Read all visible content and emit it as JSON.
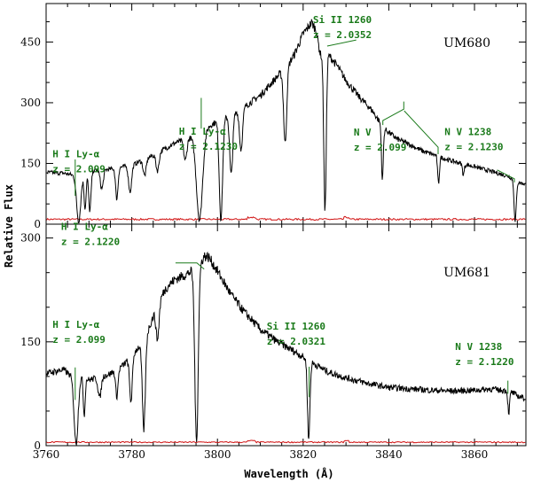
{
  "chart_data": [
    {
      "type": "line",
      "panel_label": "UM680",
      "ylabel": "Relative Flux",
      "xlabel": "Wavelength (Å)",
      "xlim": [
        3760,
        3872
      ],
      "ylim": [
        0,
        545
      ],
      "yticks_labeled": [
        0,
        150,
        300,
        450
      ],
      "xticks_labeled": [
        3760,
        3780,
        3800,
        3820,
        3840,
        3860
      ],
      "annotation_color": "#1a7a1a",
      "series": [
        {
          "role": "flux",
          "color": "#000000",
          "continuum": [
            [
              3760,
              128
            ],
            [
              3764,
              126
            ],
            [
              3766,
              122
            ],
            [
              3770,
              132
            ],
            [
              3775,
              136
            ],
            [
              3780,
              146
            ],
            [
              3785,
              170
            ],
            [
              3790,
              200
            ],
            [
              3793,
              212
            ],
            [
              3795,
              220
            ],
            [
              3797,
              235
            ],
            [
              3800,
              255
            ],
            [
              3805,
              280
            ],
            [
              3810,
              318
            ],
            [
              3814,
              365
            ],
            [
              3816,
              385
            ],
            [
              3818,
              420
            ],
            [
              3820,
              470
            ],
            [
              3822,
              498
            ],
            [
              3823,
              480
            ],
            [
              3824,
              420
            ],
            [
              3825,
              415
            ],
            [
              3826,
              418
            ],
            [
              3828,
              390
            ],
            [
              3830,
              355
            ],
            [
              3833,
              315
            ],
            [
              3836,
              282
            ],
            [
              3839,
              235
            ],
            [
              3842,
              210
            ],
            [
              3845,
              196
            ],
            [
              3848,
              180
            ],
            [
              3851,
              170
            ],
            [
              3854,
              158
            ],
            [
              3857,
              150
            ],
            [
              3860,
              142
            ],
            [
              3864,
              130
            ],
            [
              3868,
              118
            ],
            [
              3870,
              104
            ],
            [
              3872,
              98
            ]
          ],
          "absorption_lines": [
            {
              "center": 3767.6,
              "depth": 0.95,
              "width": 0.7
            },
            {
              "center": 3769.1,
              "depth": 0.7,
              "width": 0.35
            },
            {
              "center": 3770.2,
              "depth": 0.75,
              "width": 0.4
            },
            {
              "center": 3773.0,
              "depth": 0.35,
              "width": 0.5
            },
            {
              "center": 3776.5,
              "depth": 0.55,
              "width": 0.4
            },
            {
              "center": 3779.6,
              "depth": 0.45,
              "width": 0.5
            },
            {
              "center": 3783.0,
              "depth": 0.25,
              "width": 0.5
            },
            {
              "center": 3786.0,
              "depth": 0.25,
              "width": 0.5
            },
            {
              "center": 3792.5,
              "depth": 0.25,
              "width": 0.5
            },
            {
              "center": 3795.8,
              "depth": 0.95,
              "width": 1.0
            },
            {
              "center": 3800.8,
              "depth": 0.95,
              "width": 0.55
            },
            {
              "center": 3803.2,
              "depth": 0.55,
              "width": 0.5
            },
            {
              "center": 3805.5,
              "depth": 0.35,
              "width": 0.5
            },
            {
              "center": 3815.8,
              "depth": 0.48,
              "width": 0.5
            },
            {
              "center": 3825.1,
              "depth": 0.93,
              "width": 0.4
            },
            {
              "center": 3838.5,
              "depth": 0.55,
              "width": 0.3
            },
            {
              "center": 3851.6,
              "depth": 0.4,
              "width": 0.3
            },
            {
              "center": 3857.4,
              "depth": 0.18,
              "width": 0.3
            },
            {
              "center": 3869.5,
              "depth": 0.95,
              "width": 0.35
            }
          ]
        },
        {
          "role": "error",
          "color": "#d01010",
          "level": 12
        }
      ],
      "annotations": [
        {
          "lines": [
            "H I Ly-α",
            "z = 2.099"
          ],
          "text_x": 3761.5,
          "text_y": 165,
          "points": [
            [
              3766.8,
              160
            ],
            [
              3766.8,
              70
            ]
          ]
        },
        {
          "lines": [
            "H I Ly-α",
            "z = 2.1230"
          ],
          "text_x": 3791,
          "text_y": 221,
          "points": [
            [
              3796.2,
              312
            ],
            [
              3796.2,
              236
            ]
          ]
        },
        {
          "lines": [
            "Si II 1260",
            "z = 2.0352"
          ],
          "text_x": 3822.3,
          "text_y": 497,
          "points": [
            [
              3832.4,
              455
            ],
            [
              3825.6,
              440
            ]
          ]
        },
        {
          "lines": [
            "N V",
            "z = 2.099"
          ],
          "text_x": 3831.8,
          "text_y": 219,
          "points": [
            [
              3843.5,
              303
            ],
            [
              3843.5,
              284
            ],
            [
              3838.6,
              256
            ],
            [
              3838.6,
              245
            ]
          ]
        },
        {
          "lines": [],
          "text_x": 0,
          "text_y": 0,
          "points": [
            [
              3843.6,
              280
            ],
            [
              3851.5,
              190
            ],
            [
              3851.5,
              173
            ]
          ]
        },
        {
          "lines": [
            "N V 1238",
            "z = 2.1230"
          ],
          "text_x": 3853,
          "text_y": 220,
          "points": [
            [
              3865.3,
              134
            ],
            [
              3869.3,
              112
            ],
            [
              3869.3,
              103
            ]
          ]
        }
      ]
    },
    {
      "type": "line",
      "panel_label": "UM681",
      "xlabel": "Wavelength (Å)",
      "xlim": [
        3760,
        3872
      ],
      "ylim": [
        0,
        320
      ],
      "yticks_labeled": [
        0,
        150,
        300
      ],
      "xticks_labeled": [
        3760,
        3780,
        3800,
        3820,
        3840,
        3860
      ],
      "annotation_color": "#1a7a1a",
      "series": [
        {
          "role": "flux",
          "color": "#000000",
          "continuum": [
            [
              3760,
              104
            ],
            [
              3764,
              110
            ],
            [
              3766,
              100
            ],
            [
              3768,
              100
            ],
            [
              3770,
              95
            ],
            [
              3772,
              98
            ],
            [
              3775,
              104
            ],
            [
              3778,
              116
            ],
            [
              3780,
              130
            ],
            [
              3782,
              146
            ],
            [
              3784,
              170
            ],
            [
              3786,
              205
            ],
            [
              3788,
              228
            ],
            [
              3790,
              240
            ],
            [
              3793,
              248
            ],
            [
              3795,
              258
            ],
            [
              3796,
              265
            ],
            [
              3797,
              274
            ],
            [
              3798,
              272
            ],
            [
              3800,
              252
            ],
            [
              3803,
              220
            ],
            [
              3806,
              195
            ],
            [
              3810,
              168
            ],
            [
              3814,
              150
            ],
            [
              3818,
              136
            ],
            [
              3822,
              120
            ],
            [
              3826,
              106
            ],
            [
              3830,
              98
            ],
            [
              3835,
              90
            ],
            [
              3840,
              84
            ],
            [
              3845,
              82
            ],
            [
              3850,
              80
            ],
            [
              3855,
              79
            ],
            [
              3860,
              80
            ],
            [
              3864,
              82
            ],
            [
              3866,
              80
            ],
            [
              3868,
              80
            ],
            [
              3870,
              72
            ],
            [
              3872,
              68
            ]
          ],
          "absorption_lines": [
            {
              "center": 3767.0,
              "depth": 0.97,
              "width": 0.65
            },
            {
              "center": 3768.9,
              "depth": 0.55,
              "width": 0.3
            },
            {
              "center": 3772.5,
              "depth": 0.3,
              "width": 0.5
            },
            {
              "center": 3776.5,
              "depth": 0.35,
              "width": 0.4
            },
            {
              "center": 3779.8,
              "depth": 0.5,
              "width": 0.45
            },
            {
              "center": 3782.8,
              "depth": 0.85,
              "width": 0.5
            },
            {
              "center": 3786.0,
              "depth": 0.25,
              "width": 0.5
            },
            {
              "center": 3795.1,
              "depth": 0.98,
              "width": 0.55
            },
            {
              "center": 3821.3,
              "depth": 0.92,
              "width": 0.4
            },
            {
              "center": 3868.0,
              "depth": 0.4,
              "width": 0.3
            }
          ]
        },
        {
          "role": "error",
          "color": "#d01010",
          "level": 5
        }
      ],
      "annotations": [
        {
          "lines": [
            "H I Ly-α",
            "z = 2.099"
          ],
          "text_x": 3761.5,
          "text_y": 170,
          "points": [
            [
              3766.8,
              113
            ],
            [
              3766.8,
              66
            ]
          ]
        },
        {
          "lines": [
            "H I Ly-α",
            "z = 2.1220"
          ],
          "text_x": 3763.5,
          "text_y": 312,
          "points": [
            [
              3790.2,
              264
            ],
            [
              3795.2,
              264
            ],
            [
              3796.9,
              255
            ]
          ]
        },
        {
          "lines": [
            "Si II 1260",
            "z = 2.0321"
          ],
          "text_x": 3811.5,
          "text_y": 168,
          "points": [
            [
              3821.4,
              114
            ],
            [
              3821.4,
              70
            ]
          ]
        },
        {
          "lines": [
            "N V 1238",
            "z = 2.1220"
          ],
          "text_x": 3855.5,
          "text_y": 138,
          "points": [
            [
              3867.8,
              94
            ],
            [
              3867.8,
              75
            ]
          ]
        }
      ]
    }
  ]
}
